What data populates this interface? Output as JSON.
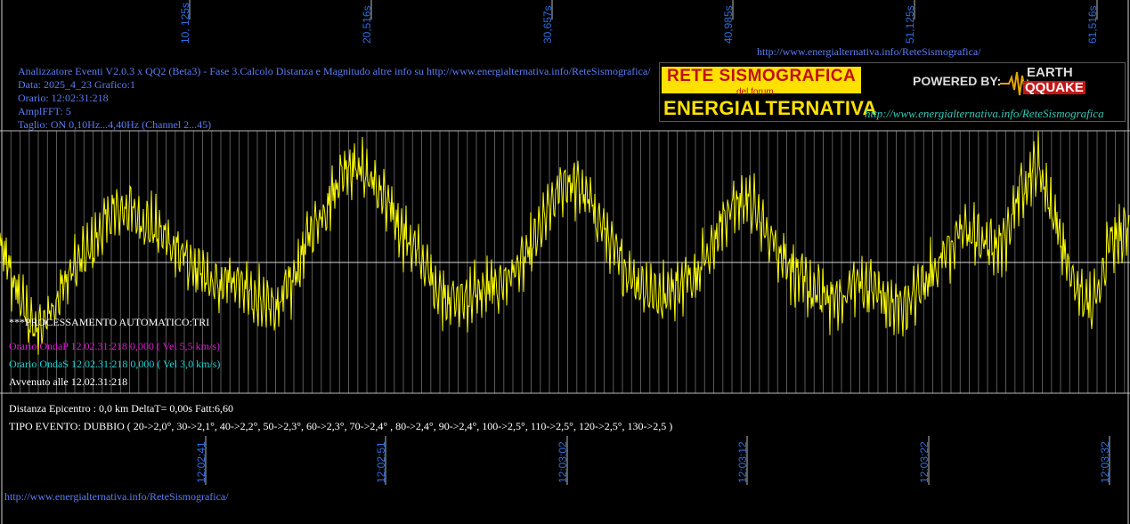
{
  "header": {
    "line1": "Analizzatore Eventi V2.0.3 x QQ2 (Beta3) - Fase 3.Calcolo Distanza e Magnitudo altre info su http://www.energialternativa.info/ReteSismografica/",
    "line2": "Data: 2025_4_23 Grafico:1",
    "line3": "Orario: 12:02:31:218",
    "line4": "AmplFFT: 5",
    "line5": "Taglio: ON 0,10Hz...4,40Hz       (Channel 2...45)"
  },
  "top_url": "http://www.energialternativa.info/ReteSismografica/",
  "bottom_url": "http://www.energialternativa.info/ReteSismografica/",
  "logo": {
    "title1": "RETE SISMOGRAFICA",
    "title2": "del forum",
    "title3": "ENERGIALTERNATIVA",
    "powered": "POWERED BY:",
    "brand1": "EARTH",
    "brand2": "QQUAKE",
    "url": "http://www.energialternativa.info/ReteSismografica"
  },
  "info": {
    "processing": "***PROCESSAMENTO AUTOMATICO:TRI",
    "onda_p": "Orario OndaP 12.02.31:218  0,000 ( Vel 5,5 km/s)",
    "onda_s": "Orario OndaS 12.02.31:218  0,000 ( Vel 3,0 km/s)",
    "avviato": "Avvenuto alle 12.02.31:218",
    "distanza": "Distanza Epicentro : 0,0 km DeltaT= 0,00s  Fatt:6,60",
    "tipo": "TIPO EVENTO: DUBBIO ( 20->2,0°, 30->2,1°, 40->2,2°, 50->2,3°, 60->2,3°, 70->2,4° , 80->2,4°, 90->2,4°, 100->2,5°, 110->2,5°, 120->2,5°, 130->2,5 )"
  },
  "colors": {
    "background": "#000000",
    "trace": "#ffff00",
    "grid": "#5a5a5a",
    "label_blue": "#2f6fe0",
    "onda_p": "#e01ad6",
    "onda_s": "#1ad3d3"
  },
  "chart_data": {
    "type": "line",
    "top_tick_labels": [
      "10, 125s",
      "20,516s",
      "30,657s",
      "40,985s",
      "51,125s",
      "61,516s"
    ],
    "bottom_tick_labels": [
      "12:02:41",
      "12:02:51",
      "12:03:02",
      "12:03:12",
      "12:03:22",
      "12:03:32"
    ],
    "grid": true,
    "ylim": [
      -1,
      1
    ],
    "series": [
      {
        "x_start_s": 0,
        "x_end_s": 62.2,
        "step_s": 1.0,
        "values": [
          0.12,
          -0.25,
          -0.55,
          -0.3,
          -0.05,
          0.1,
          0.35,
          0.42,
          0.3,
          0.2,
          0.05,
          -0.1,
          -0.2,
          -0.1,
          -0.3,
          -0.35,
          -0.18,
          0.22,
          0.45,
          0.75,
          0.7,
          0.5,
          0.25,
          0.05,
          -0.2,
          -0.3,
          -0.25,
          -0.2,
          -0.1,
          0.05,
          0.35,
          0.62,
          0.55,
          0.3,
          0.0,
          -0.15,
          -0.25,
          -0.2,
          -0.1,
          0.1,
          0.4,
          0.5,
          0.25,
          0.05,
          -0.15,
          -0.25,
          -0.3,
          -0.15,
          -0.2,
          -0.35,
          -0.3,
          -0.1,
          0.1,
          0.25,
          0.15,
          0.1,
          0.55,
          0.75,
          0.3,
          -0.2,
          -0.35,
          0.2,
          0.25
        ]
      }
    ]
  }
}
